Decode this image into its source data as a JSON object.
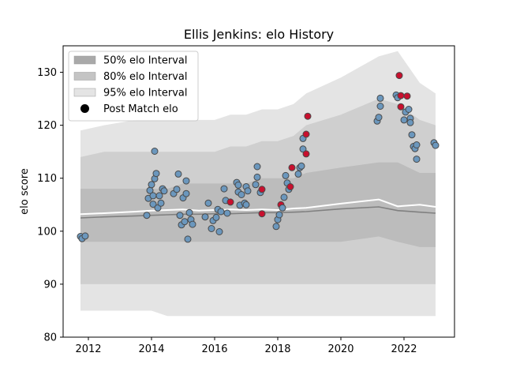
{
  "chart_data": {
    "type": "scatter",
    "title": "Ellis Jenkins: elo History",
    "xlabel": "",
    "ylabel": "elo score",
    "xlim": [
      2011.2,
      2023.6
    ],
    "ylim": [
      80,
      135
    ],
    "x_ticks": [
      2012,
      2014,
      2016,
      2018,
      2020,
      2022
    ],
    "y_ticks": [
      80,
      90,
      100,
      110,
      120,
      130
    ],
    "grid": false,
    "legend_position": "top-left",
    "legend": [
      {
        "label": "50% elo Interval",
        "kind": "band",
        "color": "#a9a9a9"
      },
      {
        "label": "80% elo Interval",
        "kind": "band",
        "color": "#c4c4c4"
      },
      {
        "label": "95% elo Interval",
        "kind": "band",
        "color": "#e4e4e4"
      },
      {
        "label": "Post Match elo",
        "kind": "marker",
        "color": "#000000"
      }
    ],
    "colors": {
      "band95": "#e4e4e4",
      "band80": "#cfcfcf",
      "band50": "#bcbcbc",
      "median_line": "#808080",
      "mean_line": "#ffffff",
      "point_fill": "#6b97bd",
      "point_edge": "#4a4a4a",
      "highlight_fill": "#c8102e"
    },
    "intervals": {
      "x": [
        2011.75,
        2012.5,
        2013.5,
        2014.0,
        2014.5,
        2015.0,
        2015.5,
        2016.0,
        2016.5,
        2017.0,
        2017.5,
        2018.0,
        2018.5,
        2018.9,
        2020.0,
        2021.2,
        2021.8,
        2022.5,
        2023.0
      ],
      "p95_hi": [
        119,
        120,
        121,
        121,
        121,
        121,
        121,
        121,
        122,
        122,
        123,
        123,
        124,
        126,
        129,
        133,
        134,
        128,
        126
      ],
      "p80_hi": [
        114,
        115,
        115,
        115,
        115,
        115,
        115,
        115,
        116,
        116,
        117,
        117,
        118,
        120,
        122,
        125,
        124,
        121,
        120
      ],
      "p50_hi": [
        108,
        108,
        108,
        108,
        108,
        109,
        109,
        109,
        109,
        109,
        110,
        110,
        110,
        111,
        112,
        113,
        113,
        111,
        111
      ],
      "p50_lo": [
        98,
        98,
        98,
        98,
        98,
        98,
        98,
        98,
        98,
        98,
        98,
        98,
        98,
        98,
        98,
        99,
        98,
        97,
        97
      ],
      "p80_lo": [
        90,
        90,
        90,
        90,
        90,
        90,
        90,
        90,
        90,
        90,
        90,
        90,
        90,
        90,
        90,
        90,
        90,
        90,
        90
      ],
      "p95_lo": [
        85,
        85,
        85,
        85,
        84,
        84,
        84,
        84,
        84,
        84,
        84,
        84,
        84,
        84,
        84,
        84,
        84,
        84,
        84
      ],
      "median": [
        102.5,
        102.7,
        102.9,
        103.0,
        103.1,
        103.2,
        103.2,
        103.3,
        103.3,
        103.4,
        103.5,
        103.5,
        103.6,
        103.7,
        104.2,
        104.6,
        103.9,
        103.6,
        103.4
      ],
      "mean": [
        103.2,
        103.4,
        103.7,
        103.9,
        104.0,
        104.1,
        103.9,
        104.0,
        104.1,
        104.0,
        104.1,
        104.0,
        104.3,
        104.4,
        105.2,
        106.0,
        104.7,
        105.0,
        104.6
      ]
    },
    "points": [
      {
        "x": 2011.75,
        "y": 99.0,
        "h": false
      },
      {
        "x": 2011.8,
        "y": 98.6,
        "h": false
      },
      {
        "x": 2011.9,
        "y": 99.1,
        "h": false
      },
      {
        "x": 2013.85,
        "y": 103.0,
        "h": false
      },
      {
        "x": 2013.9,
        "y": 106.2,
        "h": false
      },
      {
        "x": 2013.95,
        "y": 107.7,
        "h": false
      },
      {
        "x": 2014.0,
        "y": 108.8,
        "h": false
      },
      {
        "x": 2014.05,
        "y": 106.7,
        "h": false
      },
      {
        "x": 2014.05,
        "y": 105.1,
        "h": false
      },
      {
        "x": 2014.1,
        "y": 109.9,
        "h": false
      },
      {
        "x": 2014.1,
        "y": 115.1,
        "h": false
      },
      {
        "x": 2014.15,
        "y": 110.9,
        "h": false
      },
      {
        "x": 2014.2,
        "y": 104.4,
        "h": false
      },
      {
        "x": 2014.25,
        "y": 106.7,
        "h": false
      },
      {
        "x": 2014.3,
        "y": 105.3,
        "h": false
      },
      {
        "x": 2014.35,
        "y": 108.0,
        "h": false
      },
      {
        "x": 2014.4,
        "y": 107.6,
        "h": false
      },
      {
        "x": 2014.7,
        "y": 107.1,
        "h": false
      },
      {
        "x": 2014.8,
        "y": 107.9,
        "h": false
      },
      {
        "x": 2014.85,
        "y": 110.8,
        "h": false
      },
      {
        "x": 2014.9,
        "y": 103.0,
        "h": false
      },
      {
        "x": 2014.95,
        "y": 101.2,
        "h": false
      },
      {
        "x": 2015.0,
        "y": 106.3,
        "h": false
      },
      {
        "x": 2015.05,
        "y": 101.8,
        "h": false
      },
      {
        "x": 2015.1,
        "y": 107.1,
        "h": false
      },
      {
        "x": 2015.1,
        "y": 109.5,
        "h": false
      },
      {
        "x": 2015.15,
        "y": 98.5,
        "h": false
      },
      {
        "x": 2015.2,
        "y": 103.5,
        "h": false
      },
      {
        "x": 2015.25,
        "y": 102.2,
        "h": false
      },
      {
        "x": 2015.3,
        "y": 101.3,
        "h": false
      },
      {
        "x": 2015.7,
        "y": 102.7,
        "h": false
      },
      {
        "x": 2015.8,
        "y": 105.3,
        "h": false
      },
      {
        "x": 2015.9,
        "y": 100.5,
        "h": false
      },
      {
        "x": 2015.95,
        "y": 102.0,
        "h": false
      },
      {
        "x": 2016.05,
        "y": 102.6,
        "h": false
      },
      {
        "x": 2016.1,
        "y": 104.1,
        "h": false
      },
      {
        "x": 2016.15,
        "y": 99.9,
        "h": false
      },
      {
        "x": 2016.2,
        "y": 103.7,
        "h": false
      },
      {
        "x": 2016.3,
        "y": 108.0,
        "h": false
      },
      {
        "x": 2016.35,
        "y": 105.8,
        "h": false
      },
      {
        "x": 2016.4,
        "y": 103.4,
        "h": false
      },
      {
        "x": 2016.5,
        "y": 105.5,
        "h": true
      },
      {
        "x": 2016.7,
        "y": 109.2,
        "h": false
      },
      {
        "x": 2016.75,
        "y": 108.7,
        "h": false
      },
      {
        "x": 2016.75,
        "y": 107.4,
        "h": false
      },
      {
        "x": 2016.8,
        "y": 104.9,
        "h": false
      },
      {
        "x": 2016.85,
        "y": 106.9,
        "h": false
      },
      {
        "x": 2016.95,
        "y": 105.3,
        "h": false
      },
      {
        "x": 2017.0,
        "y": 108.4,
        "h": false
      },
      {
        "x": 2017.0,
        "y": 105.0,
        "h": false
      },
      {
        "x": 2017.05,
        "y": 107.6,
        "h": false
      },
      {
        "x": 2017.3,
        "y": 108.8,
        "h": false
      },
      {
        "x": 2017.35,
        "y": 112.2,
        "h": false
      },
      {
        "x": 2017.35,
        "y": 110.2,
        "h": false
      },
      {
        "x": 2017.45,
        "y": 107.3,
        "h": false
      },
      {
        "x": 2017.5,
        "y": 107.9,
        "h": true
      },
      {
        "x": 2017.5,
        "y": 103.3,
        "h": true
      },
      {
        "x": 2017.95,
        "y": 100.9,
        "h": false
      },
      {
        "x": 2018.0,
        "y": 102.2,
        "h": false
      },
      {
        "x": 2018.05,
        "y": 103.1,
        "h": false
      },
      {
        "x": 2018.1,
        "y": 105.0,
        "h": true
      },
      {
        "x": 2018.15,
        "y": 104.4,
        "h": false
      },
      {
        "x": 2018.2,
        "y": 106.4,
        "h": false
      },
      {
        "x": 2018.25,
        "y": 110.5,
        "h": false
      },
      {
        "x": 2018.3,
        "y": 109.1,
        "h": false
      },
      {
        "x": 2018.35,
        "y": 107.9,
        "h": false
      },
      {
        "x": 2018.4,
        "y": 108.4,
        "h": true
      },
      {
        "x": 2018.45,
        "y": 112.0,
        "h": true
      },
      {
        "x": 2018.65,
        "y": 110.8,
        "h": false
      },
      {
        "x": 2018.7,
        "y": 112.0,
        "h": false
      },
      {
        "x": 2018.75,
        "y": 112.3,
        "h": false
      },
      {
        "x": 2018.8,
        "y": 115.5,
        "h": false
      },
      {
        "x": 2018.8,
        "y": 117.5,
        "h": false
      },
      {
        "x": 2018.9,
        "y": 114.6,
        "h": true
      },
      {
        "x": 2018.9,
        "y": 118.3,
        "h": true
      },
      {
        "x": 2018.95,
        "y": 121.7,
        "h": true
      },
      {
        "x": 2021.15,
        "y": 120.8,
        "h": false
      },
      {
        "x": 2021.2,
        "y": 121.5,
        "h": false
      },
      {
        "x": 2021.25,
        "y": 123.6,
        "h": false
      },
      {
        "x": 2021.25,
        "y": 125.1,
        "h": false
      },
      {
        "x": 2021.75,
        "y": 125.7,
        "h": false
      },
      {
        "x": 2021.8,
        "y": 125.2,
        "h": false
      },
      {
        "x": 2021.85,
        "y": 129.4,
        "h": true
      },
      {
        "x": 2021.9,
        "y": 125.6,
        "h": true
      },
      {
        "x": 2021.9,
        "y": 123.5,
        "h": true
      },
      {
        "x": 2022.0,
        "y": 121.0,
        "h": false
      },
      {
        "x": 2022.05,
        "y": 122.5,
        "h": false
      },
      {
        "x": 2022.1,
        "y": 125.5,
        "h": true
      },
      {
        "x": 2022.15,
        "y": 123.0,
        "h": false
      },
      {
        "x": 2022.2,
        "y": 121.3,
        "h": false
      },
      {
        "x": 2022.2,
        "y": 120.5,
        "h": false
      },
      {
        "x": 2022.25,
        "y": 118.2,
        "h": false
      },
      {
        "x": 2022.3,
        "y": 116.0,
        "h": false
      },
      {
        "x": 2022.35,
        "y": 115.6,
        "h": false
      },
      {
        "x": 2022.4,
        "y": 116.3,
        "h": false
      },
      {
        "x": 2022.4,
        "y": 113.6,
        "h": false
      },
      {
        "x": 2022.95,
        "y": 116.7,
        "h": false
      },
      {
        "x": 2023.0,
        "y": 116.2,
        "h": false
      }
    ]
  }
}
